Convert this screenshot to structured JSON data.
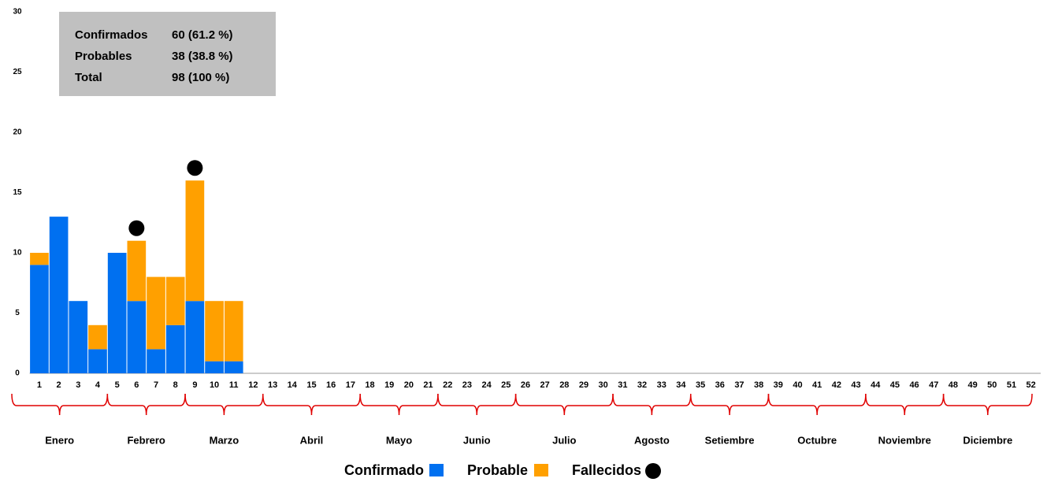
{
  "chart_data": {
    "type": "bar",
    "stacked": true,
    "categories": [
      "1",
      "2",
      "3",
      "4",
      "5",
      "6",
      "7",
      "8",
      "9",
      "10",
      "11",
      "12",
      "13",
      "14",
      "15",
      "16",
      "17",
      "18",
      "19",
      "20",
      "21",
      "22",
      "23",
      "24",
      "25",
      "26",
      "27",
      "28",
      "29",
      "30",
      "31",
      "32",
      "33",
      "34",
      "35",
      "36",
      "37",
      "38",
      "39",
      "40",
      "41",
      "42",
      "43",
      "44",
      "45",
      "46",
      "47",
      "48",
      "49",
      "50",
      "51",
      "52"
    ],
    "series": [
      {
        "name": "Confirmado",
        "color": "#0070f0",
        "values": [
          9,
          13,
          6,
          2,
          10,
          6,
          2,
          4,
          6,
          1,
          1,
          0,
          0,
          0,
          0,
          0,
          0,
          0,
          0,
          0,
          0,
          0,
          0,
          0,
          0,
          0,
          0,
          0,
          0,
          0,
          0,
          0,
          0,
          0,
          0,
          0,
          0,
          0,
          0,
          0,
          0,
          0,
          0,
          0,
          0,
          0,
          0,
          0,
          0,
          0,
          0,
          0
        ]
      },
      {
        "name": "Probable",
        "color": "#ffa000",
        "values": [
          1,
          0,
          0,
          2,
          0,
          5,
          6,
          4,
          10,
          5,
          5,
          0,
          0,
          0,
          0,
          0,
          0,
          0,
          0,
          0,
          0,
          0,
          0,
          0,
          0,
          0,
          0,
          0,
          0,
          0,
          0,
          0,
          0,
          0,
          0,
          0,
          0,
          0,
          0,
          0,
          0,
          0,
          0,
          0,
          0,
          0,
          0,
          0,
          0,
          0,
          0,
          0
        ]
      }
    ],
    "deaths": {
      "name": "Fallecidos",
      "color": "#000000",
      "values": [
        0,
        0,
        0,
        0,
        0,
        1,
        0,
        0,
        1,
        0,
        0,
        0,
        0,
        0,
        0,
        0,
        0,
        0,
        0,
        0,
        0,
        0,
        0,
        0,
        0,
        0,
        0,
        0,
        0,
        0,
        0,
        0,
        0,
        0,
        0,
        0,
        0,
        0,
        0,
        0,
        0,
        0,
        0,
        0,
        0,
        0,
        0,
        0,
        0,
        0,
        0,
        0
      ]
    },
    "months": [
      {
        "label": "Enero",
        "weeks": 4
      },
      {
        "label": "Febrero",
        "weeks": 4
      },
      {
        "label": "Marzo",
        "weeks": 4
      },
      {
        "label": "Abril",
        "weeks": 5
      },
      {
        "label": "Mayo",
        "weeks": 4
      },
      {
        "label": "Junio",
        "weeks": 4
      },
      {
        "label": "Julio",
        "weeks": 5
      },
      {
        "label": "Agosto",
        "weeks": 4
      },
      {
        "label": "Setiembre",
        "weeks": 4
      },
      {
        "label": "Octubre",
        "weeks": 5
      },
      {
        "label": "Noviembre",
        "weeks": 4
      },
      {
        "label": "Diciembre",
        "weeks": 5
      }
    ],
    "summary": {
      "rows": [
        [
          "Confirmados",
          "60 (61.2 %)"
        ],
        [
          "Probables",
          "38 (38.8 %)"
        ],
        [
          "Total",
          "98 (100 %)"
        ]
      ]
    },
    "ylim": [
      0,
      30
    ],
    "yticks": [
      0,
      5,
      10,
      15,
      20,
      25,
      30
    ],
    "grid": false
  }
}
